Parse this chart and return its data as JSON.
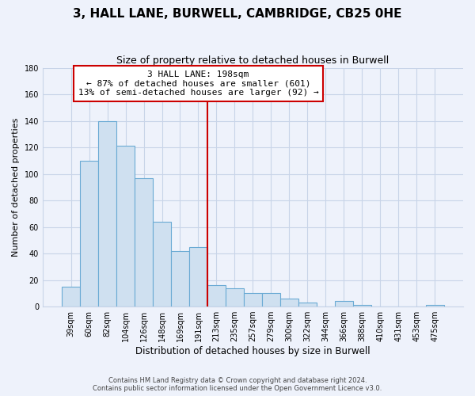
{
  "title": "3, HALL LANE, BURWELL, CAMBRIDGE, CB25 0HE",
  "subtitle": "Size of property relative to detached houses in Burwell",
  "xlabel": "Distribution of detached houses by size in Burwell",
  "ylabel": "Number of detached properties",
  "bar_labels": [
    "39sqm",
    "60sqm",
    "82sqm",
    "104sqm",
    "126sqm",
    "148sqm",
    "169sqm",
    "191sqm",
    "213sqm",
    "235sqm",
    "257sqm",
    "279sqm",
    "300sqm",
    "322sqm",
    "344sqm",
    "366sqm",
    "388sqm",
    "410sqm",
    "431sqm",
    "453sqm",
    "475sqm"
  ],
  "bar_values": [
    15,
    110,
    140,
    121,
    97,
    64,
    42,
    45,
    16,
    14,
    10,
    10,
    6,
    3,
    0,
    4,
    1,
    0,
    0,
    0,
    1
  ],
  "bar_color": "#cfe0f0",
  "bar_edge_color": "#6aaad4",
  "marker_index": 7.5,
  "marker_label": "3 HALL LANE: 198sqm",
  "annotation_line1": "← 87% of detached houses are smaller (601)",
  "annotation_line2": "13% of semi-detached houses are larger (92) →",
  "marker_color": "#cc0000",
  "ylim": [
    0,
    180
  ],
  "yticks": [
    0,
    20,
    40,
    60,
    80,
    100,
    120,
    140,
    160,
    180
  ],
  "footnote1": "Contains HM Land Registry data © Crown copyright and database right 2024.",
  "footnote2": "Contains public sector information licensed under the Open Government Licence v3.0.",
  "background_color": "#eef2fb",
  "grid_color": "#c8d4e8"
}
